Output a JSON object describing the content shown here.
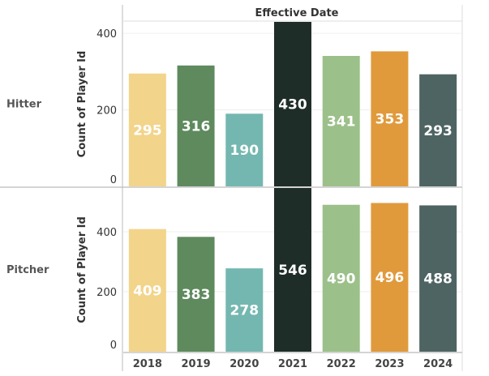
{
  "chart_data": {
    "type": "bar",
    "column_header": "Effective Date",
    "categories": [
      "2018",
      "2019",
      "2020",
      "2021",
      "2022",
      "2023",
      "2024"
    ],
    "colors": [
      "#F2D48A",
      "#5E8A5E",
      "#74B7B1",
      "#1F2D28",
      "#9CC08A",
      "#E09A3C",
      "#4E6463"
    ],
    "yticks": [
      0,
      200,
      400
    ],
    "panels": [
      {
        "name": "Hitter",
        "ylabel": "Count of Player Id",
        "values": [
          295,
          316,
          190,
          430,
          341,
          353,
          293
        ],
        "ylim": [
          0,
          430
        ]
      },
      {
        "name": "Pitcher",
        "ylabel": "Count of Player Id",
        "values": [
          409,
          383,
          278,
          546,
          490,
          496,
          488
        ],
        "ylim": [
          0,
          546
        ]
      }
    ],
    "grid": true,
    "legend": "none"
  }
}
